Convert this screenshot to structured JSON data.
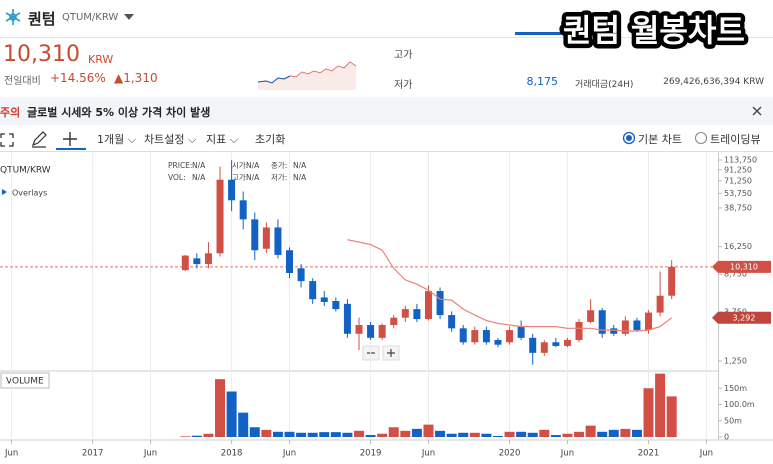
{
  "header": {
    "name": "퀀텀",
    "pair": "QTUM/KRW",
    "price": "10,310",
    "currency": "KRW",
    "change_label": "전일대비",
    "change_pct": "+14.56%",
    "change_abs": "▲1,310",
    "high_label": "고가",
    "low_label": "저가",
    "low": "8,175",
    "turnover_label": "거래대금(24H)",
    "turnover": "269,426,636,394 KRW"
  },
  "banner": {
    "badge": "주의",
    "text": "글로벌 시세와 5% 이상 가격 차이 발생"
  },
  "toolbar": {
    "interval": "1개월",
    "settings": "차트설정",
    "indicators": "지표",
    "reset": "초기화",
    "basic": "기본 차트",
    "tradingview": "트레이딩뷰"
  },
  "overlays": "Overlays",
  "infobox": [
    [
      "PRICE:",
      "N/A",
      "시가:",
      "N/A",
      "종가:",
      "N/A"
    ],
    [
      "VOL:",
      "N/A",
      "고가:",
      "N/A",
      "저가:",
      "N/A"
    ]
  ],
  "overlay_title": "퀀텀 월봉차트",
  "chart_data": [
    {
      "type": "candlestick",
      "title": "QTUM/KRW",
      "log_scale": true,
      "up_color": "#d24f45",
      "down_color": "#1261c4",
      "x": [
        "2017-09",
        "2017-10",
        "2017-11",
        "2017-12",
        "2018-01",
        "2018-02",
        "2018-03",
        "2018-04",
        "2018-05",
        "2018-06",
        "2018-07",
        "2018-08",
        "2018-09",
        "2018-10",
        "2018-11",
        "2018-12",
        "2019-01",
        "2019-02",
        "2019-03",
        "2019-04",
        "2019-05",
        "2019-06",
        "2019-07",
        "2019-08",
        "2019-09",
        "2019-10",
        "2019-11",
        "2019-12",
        "2020-01",
        "2020-02",
        "2020-03",
        "2020-04",
        "2020-05",
        "2020-06",
        "2020-07",
        "2020-08",
        "2020-09",
        "2020-10",
        "2020-11",
        "2020-12",
        "2021-01",
        "2021-02",
        "2021-03"
      ],
      "open": [
        9600,
        12500,
        11000,
        14000,
        73000,
        46000,
        30000,
        15500,
        25000,
        15000,
        10000,
        7500,
        5200,
        4800,
        4500,
        2300,
        2800,
        2100,
        2800,
        3300,
        4000,
        3200,
        6000,
        3500,
        2600,
        1900,
        2500,
        2000,
        1900,
        2700,
        2100,
        1500,
        1900,
        1750,
        2000,
        3000,
        3900,
        2600,
        2300,
        3100,
        2500,
        3700,
        5400
      ],
      "high": [
        13500,
        14000,
        18000,
        98000,
        113000,
        56000,
        35000,
        28000,
        30000,
        16000,
        11000,
        8000,
        6000,
        5200,
        5000,
        3300,
        3000,
        2900,
        3500,
        4300,
        4500,
        6800,
        6500,
        3800,
        2800,
        2700,
        2700,
        2100,
        2700,
        3100,
        2300,
        2000,
        2100,
        2100,
        3200,
        5000,
        4100,
        2800,
        3400,
        3300,
        3900,
        9300,
        12000
      ],
      "low": [
        9400,
        10000,
        10000,
        13000,
        36000,
        24000,
        12000,
        14000,
        12500,
        8000,
        6500,
        4500,
        4300,
        3800,
        2100,
        1600,
        2000,
        2000,
        2600,
        3000,
        3000,
        3100,
        3200,
        2400,
        1800,
        1800,
        1800,
        1700,
        1800,
        2000,
        1150,
        1400,
        1700,
        1700,
        1900,
        2900,
        2100,
        2200,
        2200,
        2400,
        2300,
        3400,
        5000
      ],
      "close": [
        13300,
        11000,
        14000,
        73000,
        46000,
        30000,
        15000,
        25000,
        13500,
        9000,
        7500,
        5000,
        4700,
        4000,
        2300,
        2800,
        2100,
        2800,
        3300,
        4000,
        3200,
        6000,
        3500,
        2600,
        1900,
        2500,
        1900,
        1800,
        2500,
        2100,
        1500,
        1900,
        1750,
        2000,
        3000,
        3900,
        2300,
        2300,
        3100,
        2500,
        3700,
        5400,
        10310
      ],
      "ma": {
        "color": "#e8837b",
        "values": [
          null,
          null,
          null,
          null,
          null,
          null,
          null,
          null,
          null,
          null,
          null,
          null,
          null,
          null,
          19000,
          18000,
          17000,
          15000,
          10000,
          7700,
          7000,
          6100,
          5000,
          4900,
          4000,
          3500,
          3100,
          2900,
          2800,
          2700,
          2700,
          2700,
          2700,
          2600,
          2600,
          2600,
          2500,
          2500,
          2450,
          2450,
          2500,
          2700,
          3292
        ],
        "last_label": "3,292"
      },
      "current_price": {
        "value": 10310,
        "label": "10,310"
      },
      "xlim": [
        "2016-05",
        "2021-07"
      ],
      "ylim": [
        1020,
        136000
      ],
      "yticks": [
        {
          "value": 1250,
          "label": "1,250"
        },
        {
          "value": 3750,
          "label": "3,750"
        },
        {
          "value": 8750,
          "label": "8,750"
        },
        {
          "value": 16250,
          "label": "16,250"
        },
        {
          "value": 38750,
          "label": "38,750"
        },
        {
          "value": 53750,
          "label": "53,750"
        },
        {
          "value": 71250,
          "label": "71,250"
        },
        {
          "value": 91250,
          "label": "91,250"
        },
        {
          "value": 113750,
          "label": "113,750"
        }
      ]
    },
    {
      "type": "bar",
      "title": "VOLUME",
      "grid": true,
      "x": [
        "2017-09",
        "2017-10",
        "2017-11",
        "2017-12",
        "2018-01",
        "2018-02",
        "2018-03",
        "2018-04",
        "2018-05",
        "2018-06",
        "2018-07",
        "2018-08",
        "2018-09",
        "2018-10",
        "2018-11",
        "2018-12",
        "2019-01",
        "2019-02",
        "2019-03",
        "2019-04",
        "2019-05",
        "2019-06",
        "2019-07",
        "2019-08",
        "2019-09",
        "2019-10",
        "2019-11",
        "2019-12",
        "2020-01",
        "2020-02",
        "2020-03",
        "2020-04",
        "2020-05",
        "2020-06",
        "2020-07",
        "2020-08",
        "2020-09",
        "2020-10",
        "2020-11",
        "2020-12",
        "2021-01",
        "2021-02",
        "2021-03"
      ],
      "values": [
        2000000,
        4000000,
        10000000,
        178000000,
        140000000,
        75000000,
        30000000,
        22000000,
        16000000,
        16000000,
        13000000,
        13000000,
        15000000,
        15000000,
        13000000,
        19000000,
        6000000,
        10000000,
        30000000,
        19000000,
        25000000,
        38000000,
        19000000,
        10000000,
        13000000,
        13000000,
        10000000,
        3000000,
        16000000,
        16000000,
        13000000,
        22000000,
        6000000,
        10000000,
        16000000,
        35000000,
        16000000,
        22000000,
        25000000,
        22000000,
        150000000,
        195000000,
        125000000
      ],
      "xlim": [
        "2016-05",
        "2021-07"
      ],
      "xticks": [
        {
          "value": "2016-06",
          "label": "Jun"
        },
        {
          "value": "2017-01",
          "label": "2017"
        },
        {
          "value": "2017-06",
          "label": "Jun"
        },
        {
          "value": "2018-01",
          "label": "2018"
        },
        {
          "value": "2018-06",
          "label": "Jun"
        },
        {
          "value": "2019-01",
          "label": "2019"
        },
        {
          "value": "2019-06",
          "label": "Jun"
        },
        {
          "value": "2020-01",
          "label": "2020"
        },
        {
          "value": "2020-06",
          "label": "Jun"
        },
        {
          "value": "2021-01",
          "label": "2021"
        },
        {
          "value": "2021-06",
          "label": "Jun"
        }
      ],
      "ylim": [
        0,
        200000000
      ],
      "yticks": [
        0,
        {
          "value": 50000000,
          "label": "50m"
        },
        {
          "value": 100000000,
          "label": "100.0m"
        },
        {
          "value": 150000000,
          "label": "150m"
        }
      ]
    }
  ]
}
